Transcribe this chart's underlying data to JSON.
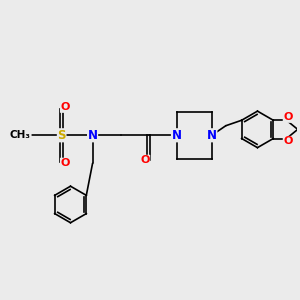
{
  "background_color": "#ebebeb",
  "atom_colors": {
    "N": "#0000ff",
    "O": "#ff0000",
    "S": "#ccaa00",
    "C": "#000000"
  },
  "bond_color": "#000000",
  "figsize": [
    3.0,
    3.0
  ],
  "dpi": 100
}
